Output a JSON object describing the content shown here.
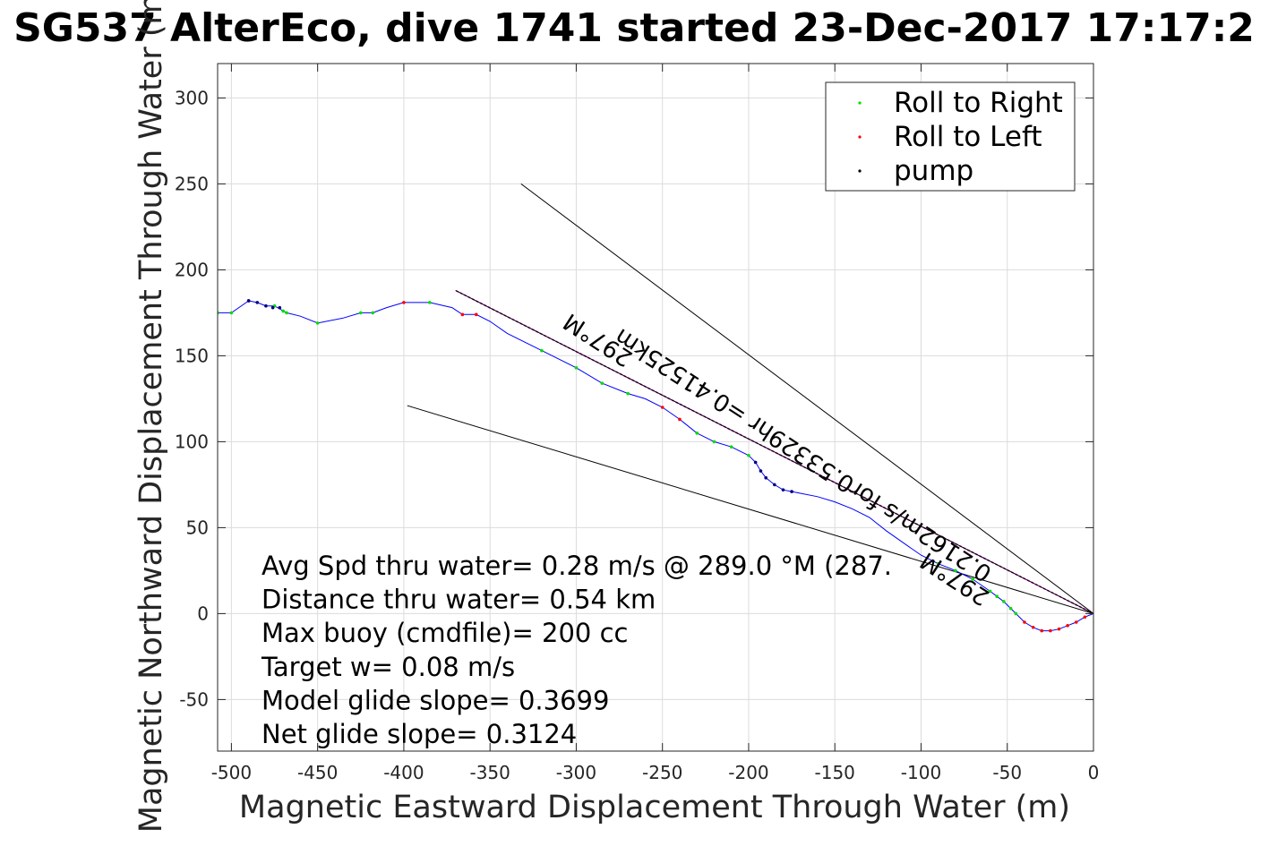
{
  "chart_data": {
    "type": "scatter",
    "title": "SG537 AlterEco, dive 1741 started 23-Dec-2017 17:17:2",
    "xlabel": "Magnetic Eastward Displacement Through Water (m)",
    "ylabel": "Magnetic Northward Displacement Through Water (m)",
    "xlim": [
      -508,
      0
    ],
    "ylim": [
      -80,
      320
    ],
    "xticks": [
      -500,
      -450,
      -400,
      -350,
      -300,
      -250,
      -200,
      -150,
      -100,
      -50,
      0
    ],
    "yticks": [
      -50,
      0,
      50,
      100,
      150,
      200,
      250,
      300
    ],
    "grid": true,
    "legend_position": "top-right",
    "legend": [
      {
        "label": "Roll to Right",
        "color": "#00dd00"
      },
      {
        "label": "Roll to Left",
        "color": "#ff0000"
      },
      {
        "label": "pump",
        "color": "#000000"
      }
    ],
    "track": [
      [
        0,
        0
      ],
      [
        -5,
        -2
      ],
      [
        -10,
        -5
      ],
      [
        -15,
        -7
      ],
      [
        -20,
        -9
      ],
      [
        -25,
        -10
      ],
      [
        -30,
        -10
      ],
      [
        -35,
        -8
      ],
      [
        -40,
        -5
      ],
      [
        -45,
        0
      ],
      [
        -48,
        3
      ],
      [
        -52,
        7
      ],
      [
        -56,
        10
      ],
      [
        -60,
        13
      ],
      [
        -70,
        20
      ],
      [
        -80,
        25
      ],
      [
        -90,
        29
      ],
      [
        -100,
        34
      ],
      [
        -110,
        41
      ],
      [
        -120,
        48
      ],
      [
        -130,
        56
      ],
      [
        -140,
        61
      ],
      [
        -150,
        65
      ],
      [
        -160,
        68
      ],
      [
        -170,
        70
      ],
      [
        -175,
        71
      ],
      [
        -180,
        72
      ],
      [
        -185,
        75
      ],
      [
        -190,
        79
      ],
      [
        -193,
        83
      ],
      [
        -196,
        88
      ],
      [
        -200,
        92
      ],
      [
        -210,
        97
      ],
      [
        -220,
        100
      ],
      [
        -230,
        105
      ],
      [
        -240,
        113
      ],
      [
        -250,
        120
      ],
      [
        -260,
        125
      ],
      [
        -270,
        128
      ],
      [
        -285,
        134
      ],
      [
        -300,
        143
      ],
      [
        -320,
        153
      ],
      [
        -340,
        163
      ],
      [
        -350,
        170
      ],
      [
        -358,
        174
      ],
      [
        -366,
        174
      ],
      [
        -372,
        178
      ],
      [
        -385,
        181
      ],
      [
        -400,
        181
      ],
      [
        -410,
        178
      ],
      [
        -418,
        175
      ],
      [
        -425,
        175
      ],
      [
        -435,
        172
      ],
      [
        -450,
        169
      ],
      [
        -460,
        173
      ],
      [
        -468,
        175
      ],
      [
        -475,
        179
      ],
      [
        -480,
        179
      ],
      [
        -485,
        181
      ],
      [
        -490,
        182
      ],
      [
        -500,
        175
      ],
      [
        -508,
        175
      ]
    ],
    "roll_right_points": [
      [
        -45,
        0
      ],
      [
        -48,
        3
      ],
      [
        -52,
        7
      ],
      [
        -56,
        10
      ],
      [
        -60,
        13
      ],
      [
        -70,
        20
      ],
      [
        -80,
        25
      ],
      [
        -90,
        29
      ],
      [
        -200,
        92
      ],
      [
        -210,
        97
      ],
      [
        -220,
        100
      ],
      [
        -230,
        105
      ],
      [
        -270,
        128
      ],
      [
        -285,
        134
      ],
      [
        -300,
        143
      ],
      [
        -320,
        153
      ],
      [
        -385,
        181
      ],
      [
        -418,
        175
      ],
      [
        -425,
        175
      ],
      [
        -450,
        169
      ],
      [
        -468,
        175
      ],
      [
        -470,
        176
      ],
      [
        -475,
        179
      ],
      [
        -500,
        175
      ],
      [
        -508,
        175
      ]
    ],
    "roll_left_points": [
      [
        -5,
        -2
      ],
      [
        -10,
        -5
      ],
      [
        -15,
        -7
      ],
      [
        -20,
        -9
      ],
      [
        -25,
        -10
      ],
      [
        -30,
        -10
      ],
      [
        -35,
        -8
      ],
      [
        -40,
        -5
      ],
      [
        -240,
        113
      ],
      [
        -250,
        120
      ],
      [
        -358,
        174
      ],
      [
        -366,
        174
      ],
      [
        -400,
        181
      ],
      [
        -490,
        182
      ]
    ],
    "pump_points": [
      [
        -175,
        71
      ],
      [
        -180,
        72
      ],
      [
        -185,
        75
      ],
      [
        -190,
        79
      ],
      [
        -193,
        83
      ],
      [
        -196,
        88
      ],
      [
        -480,
        179
      ],
      [
        -485,
        181
      ],
      [
        -490,
        182
      ],
      [
        -476,
        178
      ],
      [
        -472,
        178
      ]
    ],
    "reference_lines": [
      {
        "x": [
          0,
          -332
        ],
        "y": [
          0,
          250
        ],
        "color": "#000000"
      },
      {
        "x": [
          0,
          -398
        ],
        "y": [
          0,
          121
        ],
        "color": "#000000"
      },
      {
        "x": [
          0,
          -370
        ],
        "y": [
          0,
          188
        ],
        "color": "#cc00cc",
        "dashed": true
      },
      {
        "x": [
          0,
          -370
        ],
        "y": [
          0,
          188
        ],
        "color": "#000000"
      }
    ],
    "annotations": [
      {
        "text": "297°M",
        "x": -78,
        "y": 24,
        "rotation": 33
      },
      {
        "text": "0.2162m/s for0.53329hr =0.41525km",
        "x": -166,
        "y": 96,
        "rotation": 33
      },
      {
        "text": "297°M",
        "x": -285,
        "y": 163,
        "rotation": 33
      }
    ],
    "stats": [
      "Avg Spd thru water=  0.28 m/s @ 289.0 °M (287.",
      "Distance thru water=  0.54 km",
      "Max buoy (cmdfile)= 200 cc",
      "Target w= 0.08 m/s",
      "Model glide slope= 0.3699",
      "Net glide slope= 0.3124"
    ]
  }
}
